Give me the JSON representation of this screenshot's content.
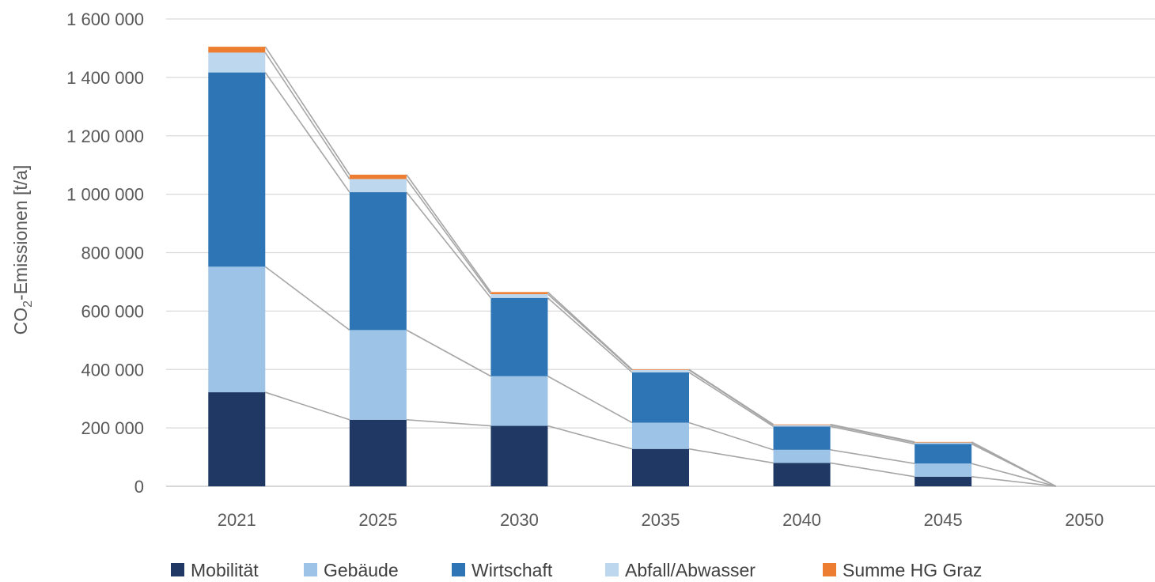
{
  "chart_data": {
    "type": "bar",
    "stacked": true,
    "title": "",
    "xlabel": "",
    "ylabel": {
      "main": "CO",
      "sub": "2",
      "rest": "-Emissionen [t/a]"
    },
    "ylim": [
      0,
      1600000
    ],
    "yticks": [
      0,
      200000,
      400000,
      600000,
      800000,
      1000000,
      1200000,
      1400000,
      1600000
    ],
    "ytick_labels": [
      "0",
      "200 000",
      "400 000",
      "600 000",
      "800 000",
      "1 000 000",
      "1 200 000",
      "1 400 000",
      "1 600 000"
    ],
    "grid": true,
    "legend_position": "bottom",
    "categories": [
      "2021",
      "2025",
      "2030",
      "2035",
      "2040",
      "2045",
      "2050"
    ],
    "series": [
      {
        "name": "Mobilität",
        "color": "#1f3864",
        "values": [
          322000,
          228000,
          207000,
          128000,
          80000,
          33000,
          0
        ]
      },
      {
        "name": "Gebäude",
        "color": "#9dc3e6",
        "values": [
          430000,
          307000,
          170000,
          90000,
          45000,
          45000,
          0
        ]
      },
      {
        "name": "Wirtschaft",
        "color": "#2e75b6",
        "values": [
          665000,
          472000,
          268000,
          172000,
          80000,
          67000,
          0
        ]
      },
      {
        "name": "Abfall/Abwasser",
        "color": "#bdd7ee",
        "values": [
          68000,
          45000,
          13000,
          8000,
          5000,
          5000,
          0
        ]
      },
      {
        "name": "Summe HG Graz",
        "color": "#ed7d31",
        "values": [
          20000,
          15000,
          7000,
          2000,
          2000,
          2000,
          0
        ]
      }
    ],
    "connector_line_color": "#a6a6a6"
  }
}
